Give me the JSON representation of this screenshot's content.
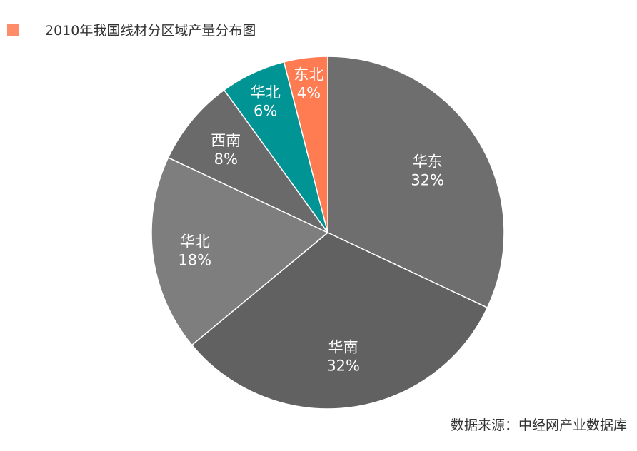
{
  "chart_data": {
    "type": "pie",
    "legend": "2010年我国线材分区域产量分布图",
    "legend_color": "#FF8C69",
    "slices": [
      {
        "label": "华东",
        "value": 32,
        "value_label": "32%",
        "color": "#6E6E6E"
      },
      {
        "label": "华南",
        "value": 32,
        "value_label": "32%",
        "color": "#616161"
      },
      {
        "label": "华北",
        "value": 18,
        "value_label": "18%",
        "color": "#7E7E7E"
      },
      {
        "label": "西南",
        "value": 8,
        "value_label": "8%",
        "color": "#6A6A6A"
      },
      {
        "label": "华北",
        "value": 6,
        "value_label": "6%",
        "color": "#009494"
      },
      {
        "label": "东北",
        "value": 4,
        "value_label": "4%",
        "color": "#FF7B52"
      }
    ]
  },
  "source": "数据来源：中经网产业数据库"
}
